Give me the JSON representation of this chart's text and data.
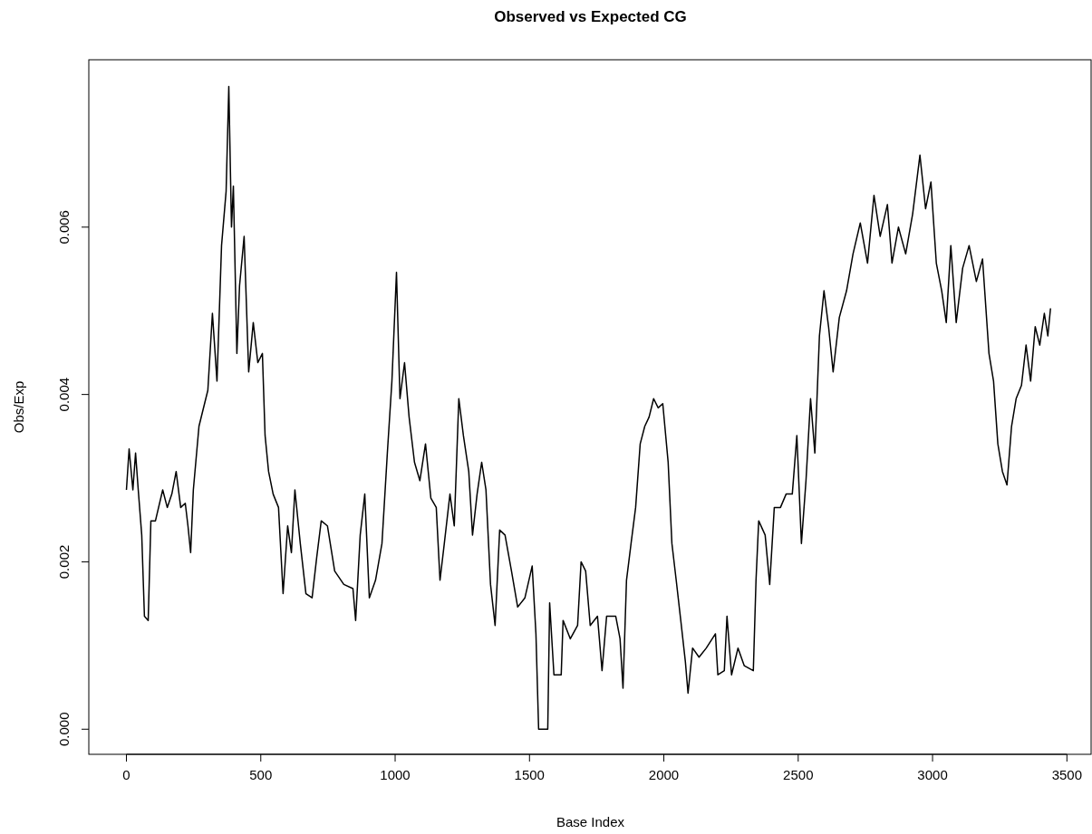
{
  "chart_data": {
    "type": "line",
    "title": "Observed vs Expected CG",
    "xlabel": "Base Index",
    "ylabel": "Obs/Exp",
    "xlim": [
      -140,
      3590
    ],
    "ylim": [
      -0.0003,
      0.008
    ],
    "xticks": [
      0,
      500,
      1000,
      1500,
      2000,
      2500,
      3000,
      3500
    ],
    "yticks": [
      {
        "value": 0,
        "label": "0.000"
      },
      {
        "value": 0.002,
        "label": "0.002"
      },
      {
        "value": 0.004,
        "label": "0.004"
      },
      {
        "value": 0.006,
        "label": "0.006"
      }
    ],
    "grid": false,
    "marker": "none",
    "line_style": "solid",
    "series": [
      {
        "color": "#000000",
        "x": [
          0,
          10,
          24,
          34,
          44,
          57,
          67,
          81,
          91,
          108,
          135,
          152,
          169,
          185,
          202,
          219,
          229,
          239,
          249,
          270,
          303,
          320,
          337,
          354,
          371,
          381,
          391,
          398,
          411,
          421,
          438,
          455,
          472,
          489,
          506,
          516,
          529,
          546,
          566,
          583,
          600,
          614,
          627,
          647,
          668,
          691,
          708,
          725,
          748,
          775,
          809,
          843,
          853,
          870,
          887,
          904,
          927,
          951,
          971,
          988,
          1005,
          1018,
          1035,
          1052,
          1072,
          1092,
          1113,
          1133,
          1153,
          1167,
          1183,
          1204,
          1220,
          1237,
          1254,
          1274,
          1288,
          1305,
          1322,
          1338,
          1355,
          1372,
          1389,
          1409,
          1433,
          1456,
          1483,
          1510,
          1524,
          1534,
          1568,
          1575,
          1591,
          1618,
          1625,
          1652,
          1679,
          1692,
          1709,
          1726,
          1753,
          1770,
          1787,
          1821,
          1837,
          1848,
          1861,
          1878,
          1895,
          1912,
          1929,
          1945,
          1962,
          1979,
          1996,
          2016,
          2030,
          2046,
          2063,
          2080,
          2090,
          2107,
          2131,
          2158,
          2192,
          2201,
          2225,
          2235,
          2252,
          2276,
          2299,
          2333,
          2343,
          2353,
          2377,
          2394,
          2411,
          2434,
          2455,
          2478,
          2495,
          2512,
          2529,
          2546,
          2562,
          2579,
          2596,
          2613,
          2630,
          2653,
          2680,
          2704,
          2731,
          2758,
          2782,
          2805,
          2832,
          2849,
          2873,
          2900,
          2926,
          2953,
          2974,
          2994,
          3014,
          3034,
          3051,
          3068,
          3088,
          3112,
          3136,
          3163,
          3186,
          3210,
          3227,
          3243,
          3260,
          3277,
          3294,
          3311,
          3331,
          3348,
          3365,
          3382,
          3399,
          3416,
          3429,
          3439
        ],
        "values": [
          0.00286,
          0.00335,
          0.00286,
          0.0033,
          0.00286,
          0.00232,
          0.00135,
          0.0013,
          0.00249,
          0.00249,
          0.00286,
          0.00265,
          0.00281,
          0.00308,
          0.00265,
          0.0027,
          0.00243,
          0.00211,
          0.00286,
          0.00362,
          0.00405,
          0.00497,
          0.00416,
          0.00578,
          0.00643,
          0.00768,
          0.006,
          0.00649,
          0.00449,
          0.0053,
          0.00589,
          0.00427,
          0.00486,
          0.00438,
          0.00449,
          0.00351,
          0.00308,
          0.00281,
          0.00265,
          0.00162,
          0.00243,
          0.00211,
          0.00286,
          0.00222,
          0.00162,
          0.00157,
          0.00205,
          0.00249,
          0.00243,
          0.00189,
          0.00173,
          0.00168,
          0.0013,
          0.00232,
          0.00281,
          0.00157,
          0.00178,
          0.00222,
          0.0033,
          0.00416,
          0.00546,
          0.00395,
          0.00438,
          0.00373,
          0.00319,
          0.00297,
          0.00341,
          0.00276,
          0.00265,
          0.00178,
          0.00222,
          0.00281,
          0.00243,
          0.00395,
          0.00351,
          0.00308,
          0.00232,
          0.00281,
          0.00319,
          0.00286,
          0.00173,
          0.00124,
          0.00238,
          0.00232,
          0.00189,
          0.00146,
          0.00157,
          0.00195,
          0.00114,
          0,
          0,
          0.00151,
          0.00065,
          0.00065,
          0.0013,
          0.00108,
          0.00124,
          0.002,
          0.00189,
          0.00124,
          0.00135,
          0.0007,
          0.00135,
          0.00135,
          0.00108,
          0.00049,
          0.00178,
          0.00222,
          0.00265,
          0.00341,
          0.00362,
          0.00373,
          0.00395,
          0.00384,
          0.00389,
          0.00319,
          0.00222,
          0.00178,
          0.0013,
          0.00081,
          0.00043,
          0.00097,
          0.00086,
          0.00097,
          0.00114,
          0.00065,
          0.0007,
          0.00135,
          0.00065,
          0.00097,
          0.00076,
          0.0007,
          0.00178,
          0.00249,
          0.00232,
          0.00173,
          0.00265,
          0.00265,
          0.00281,
          0.00281,
          0.00351,
          0.00222,
          0.00297,
          0.00395,
          0.0033,
          0.0047,
          0.00524,
          0.00481,
          0.00427,
          0.00492,
          0.00524,
          0.00568,
          0.00605,
          0.00557,
          0.00638,
          0.00589,
          0.00627,
          0.00557,
          0.006,
          0.00568,
          0.00616,
          0.00686,
          0.00622,
          0.00654,
          0.00557,
          0.00524,
          0.00486,
          0.00578,
          0.00486,
          0.00551,
          0.00578,
          0.00535,
          0.00562,
          0.00449,
          0.00416,
          0.00341,
          0.00308,
          0.00292,
          0.00362,
          0.00395,
          0.00411,
          0.00459,
          0.00416,
          0.00481,
          0.00459,
          0.00497,
          0.0047,
          0.00503
        ]
      }
    ]
  }
}
